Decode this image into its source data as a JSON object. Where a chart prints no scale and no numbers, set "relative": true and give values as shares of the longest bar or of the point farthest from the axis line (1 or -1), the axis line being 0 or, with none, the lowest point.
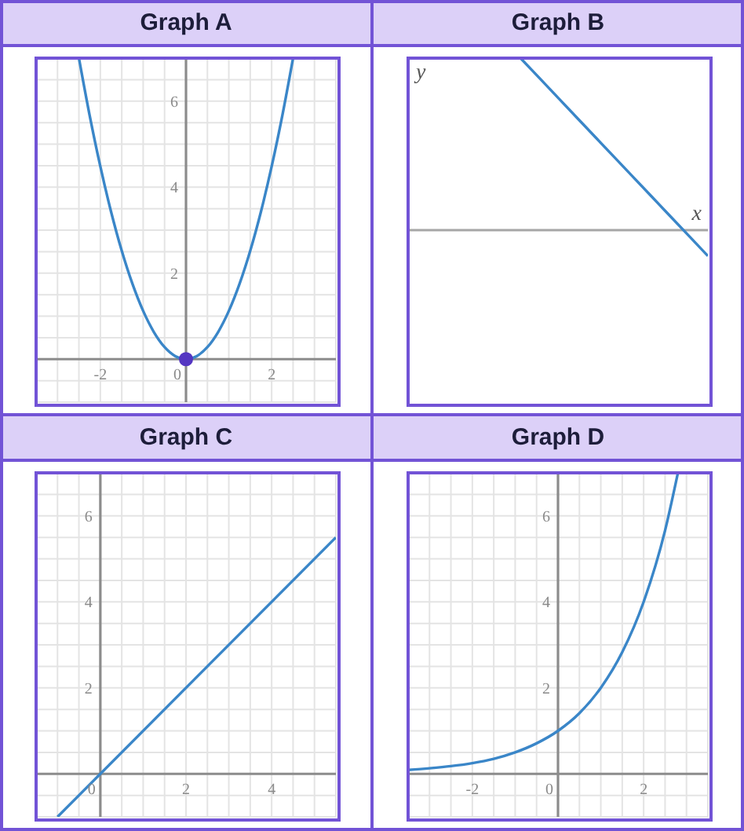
{
  "chart_data": [
    {
      "type": "line",
      "title": "Graph A",
      "xlim": [
        -3.5,
        3.5
      ],
      "ylim": [
        -1,
        7
      ],
      "xticks": [
        {
          "value": -3.5,
          "label": null
        },
        {
          "value": -3,
          "label": null
        },
        {
          "value": -2.5,
          "label": null
        },
        -2,
        {
          "value": -1.5,
          "label": null
        },
        {
          "value": -1,
          "label": null
        },
        {
          "value": -0.5,
          "label": null
        },
        0,
        {
          "value": 0.5,
          "label": null
        },
        {
          "value": 1,
          "label": null
        },
        {
          "value": 1.5,
          "label": null
        },
        2,
        {
          "value": 2.5,
          "label": null
        },
        {
          "value": 3,
          "label": null
        },
        {
          "value": 3.5,
          "label": null
        }
      ],
      "yticks": [
        {
          "value": -1,
          "label": null
        },
        {
          "value": -0.5,
          "label": null
        },
        {
          "value": 0,
          "label": null
        },
        {
          "value": 0.5,
          "label": null
        },
        {
          "value": 1,
          "label": null
        },
        {
          "value": 1.5,
          "label": null
        },
        2,
        {
          "value": 2.5,
          "label": null
        },
        {
          "value": 3,
          "label": null
        },
        {
          "value": 3.5,
          "label": null
        },
        4,
        {
          "value": 4.5,
          "label": null
        },
        {
          "value": 5,
          "label": null
        },
        {
          "value": 5.5,
          "label": null
        },
        6,
        {
          "value": 6.5,
          "label": null
        },
        {
          "value": 7,
          "label": null
        }
      ],
      "grid": true,
      "series": [
        {
          "color": "#3a86c8",
          "x": [
            -2.5,
            -2.25,
            -2,
            -1.75,
            -1.5,
            -1.25,
            -1,
            -0.75,
            -0.5,
            -0.25,
            0,
            0.25,
            0.5,
            0.75,
            1,
            1.25,
            1.5,
            1.75,
            2,
            2.25,
            2.5
          ],
          "values": [
            7,
            5.67,
            4.48,
            3.43,
            2.52,
            1.75,
            1.12,
            0.63,
            0.28,
            0.07,
            0,
            0.07,
            0.28,
            0.63,
            1.12,
            1.75,
            2.52,
            3.43,
            4.48,
            5.67,
            7
          ]
        },
        {
          "type": "scatter",
          "color": "#5436c2",
          "marker": "circle",
          "x": [
            0
          ],
          "values": [
            0
          ]
        }
      ]
    },
    {
      "type": "line",
      "title": "Graph B",
      "xlabel": "x",
      "ylabel": "y",
      "relative": true,
      "categories": [
        null,
        null,
        null,
        null,
        null,
        null,
        null,
        null,
        null
      ],
      "ref_lines": [
        {
          "axis": "y",
          "value": 0,
          "color": "#a6a6a6"
        }
      ],
      "series": [
        {
          "color": "#3a86c8",
          "values": [
            null,
            null,
            null,
            1,
            0.77,
            0.54,
            0.31,
            0.08,
            -0.15
          ]
        }
      ]
    },
    {
      "type": "line",
      "title": "Graph C",
      "xlim": [
        -1.5,
        5.5
      ],
      "ylim": [
        -1,
        7
      ],
      "xticks": [
        {
          "value": -1.5,
          "label": null
        },
        {
          "value": -1,
          "label": null
        },
        {
          "value": -0.5,
          "label": null
        },
        0,
        {
          "value": 0.5,
          "label": null
        },
        {
          "value": 1,
          "label": null
        },
        {
          "value": 1.5,
          "label": null
        },
        2,
        {
          "value": 2.5,
          "label": null
        },
        {
          "value": 3,
          "label": null
        },
        {
          "value": 3.5,
          "label": null
        },
        4,
        {
          "value": 4.5,
          "label": null
        },
        {
          "value": 5,
          "label": null
        },
        {
          "value": 5.5,
          "label": null
        }
      ],
      "yticks": [
        {
          "value": -1,
          "label": null
        },
        {
          "value": -0.5,
          "label": null
        },
        {
          "value": 0,
          "label": null
        },
        {
          "value": 0.5,
          "label": null
        },
        {
          "value": 1,
          "label": null
        },
        {
          "value": 1.5,
          "label": null
        },
        2,
        {
          "value": 2.5,
          "label": null
        },
        {
          "value": 3,
          "label": null
        },
        {
          "value": 3.5,
          "label": null
        },
        4,
        {
          "value": 4.5,
          "label": null
        },
        {
          "value": 5,
          "label": null
        },
        {
          "value": 5.5,
          "label": null
        },
        6,
        {
          "value": 6.5,
          "label": null
        },
        {
          "value": 7,
          "label": null
        }
      ],
      "grid": true,
      "series": [
        {
          "color": "#3a86c8",
          "x": [
            -1,
            5.5
          ],
          "values": [
            -1,
            5.5
          ]
        }
      ]
    },
    {
      "type": "line",
      "title": "Graph D",
      "xlim": [
        -3.5,
        3.5
      ],
      "ylim": [
        -1,
        7
      ],
      "xticks": [
        {
          "value": -3.5,
          "label": null
        },
        {
          "value": -3,
          "label": null
        },
        {
          "value": -2.5,
          "label": null
        },
        -2,
        {
          "value": -1.5,
          "label": null
        },
        {
          "value": -1,
          "label": null
        },
        {
          "value": -0.5,
          "label": null
        },
        0,
        {
          "value": 0.5,
          "label": null
        },
        {
          "value": 1,
          "label": null
        },
        {
          "value": 1.5,
          "label": null
        },
        2,
        {
          "value": 2.5,
          "label": null
        },
        {
          "value": 3,
          "label": null
        },
        {
          "value": 3.5,
          "label": null
        }
      ],
      "yticks": [
        {
          "value": -1,
          "label": null
        },
        {
          "value": -0.5,
          "label": null
        },
        {
          "value": 0,
          "label": null
        },
        {
          "value": 0.5,
          "label": null
        },
        {
          "value": 1,
          "label": null
        },
        {
          "value": 1.5,
          "label": null
        },
        2,
        {
          "value": 2.5,
          "label": null
        },
        {
          "value": 3,
          "label": null
        },
        {
          "value": 3.5,
          "label": null
        },
        4,
        {
          "value": 4.5,
          "label": null
        },
        {
          "value": 5,
          "label": null
        },
        {
          "value": 5.5,
          "label": null
        },
        6,
        {
          "value": 6.5,
          "label": null
        },
        {
          "value": 7,
          "label": null
        }
      ],
      "grid": true,
      "series": [
        {
          "color": "#3a86c8",
          "x": [
            -3.5,
            -3,
            -2.5,
            -2,
            -1.5,
            -1,
            -0.5,
            0,
            0.5,
            1,
            1.5,
            2,
            2.5,
            2.8
          ],
          "values": [
            0.09,
            0.13,
            0.18,
            0.25,
            0.35,
            0.5,
            0.71,
            1,
            1.41,
            2,
            2.83,
            4,
            5.66,
            7
          ]
        }
      ]
    }
  ]
}
